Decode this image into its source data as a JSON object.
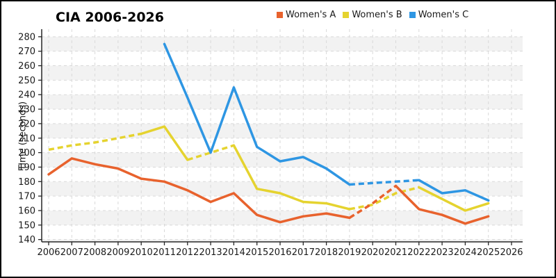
{
  "chart_data": {
    "type": "line",
    "title": "CIA 2006-2026",
    "ylabel": "Time (seconds)",
    "xlabel": "",
    "x_ticks": [
      2006,
      2007,
      2008,
      2009,
      2010,
      2011,
      2012,
      2013,
      2014,
      2015,
      2016,
      2017,
      2018,
      2019,
      2020,
      2021,
      2022,
      2023,
      2024,
      2025,
      2026
    ],
    "y_ticks": [
      140,
      150,
      160,
      170,
      180,
      190,
      200,
      210,
      220,
      230,
      240,
      250,
      260,
      270,
      280
    ],
    "ylim": [
      138.4,
      285.2
    ],
    "xlim": [
      2005.7,
      2026.5
    ],
    "grid": "dashed horizontal and vertical",
    "legend_position": "top-center",
    "band_fill": "#f2f2f2",
    "gridline_color": "#d9d9d9",
    "axis_color": "#262626",
    "series": [
      {
        "name": "Women's A",
        "color": "#e8622d",
        "x": [
          2006,
          2007,
          2008,
          2009,
          2010,
          2011,
          2012,
          2013,
          2014,
          2015,
          2016,
          2017,
          2018,
          2019,
          2020,
          2021,
          2022,
          2023,
          2024,
          2025
        ],
        "values": [
          185,
          196,
          192,
          189,
          182,
          180,
          174,
          166,
          172,
          157,
          152,
          156,
          158,
          155,
          165,
          177,
          161,
          157,
          151,
          156
        ],
        "dashed_spans": [
          [
            2019,
            2021
          ]
        ]
      },
      {
        "name": "Women's B",
        "color": "#e5d32f",
        "x": [
          2006,
          2007,
          2008,
          2009,
          2010,
          2011,
          2012,
          2013,
          2014,
          2015,
          2016,
          2017,
          2018,
          2019,
          2020,
          2021,
          2022,
          2023,
          2024,
          2025
        ],
        "values": [
          202,
          205,
          207,
          210,
          213,
          218,
          195,
          200,
          205,
          175,
          172,
          166,
          165,
          161,
          164,
          172,
          176,
          168,
          160,
          165
        ],
        "dashed_spans": [
          [
            2006,
            2010
          ],
          [
            2012,
            2014
          ],
          [
            2019,
            2022
          ]
        ]
      },
      {
        "name": "Women's C",
        "color": "#2e96e3",
        "x": [
          2011,
          2012,
          2013,
          2014,
          2015,
          2016,
          2017,
          2018,
          2019,
          2020,
          2021,
          2022,
          2023,
          2024,
          2025
        ],
        "values": [
          275,
          238,
          200,
          245,
          204,
          194,
          197,
          189,
          178,
          179,
          180,
          181,
          172,
          174,
          167
        ],
        "dashed_spans": [
          [
            2019,
            2022
          ]
        ]
      }
    ]
  }
}
